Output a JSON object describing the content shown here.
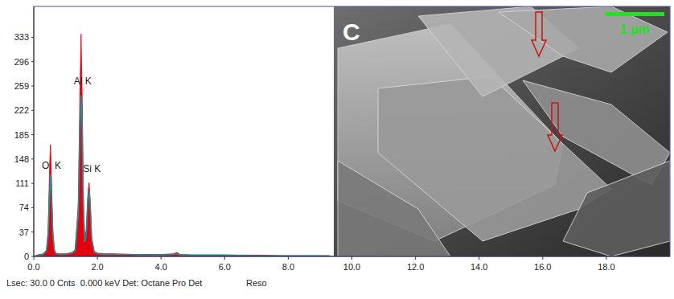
{
  "chart_data": {
    "type": "area",
    "xlim": [
      0,
      20
    ],
    "ylim": [
      0,
      380
    ],
    "xticks": [
      {
        "value": 0,
        "label": "0.0"
      },
      {
        "value": 2,
        "label": "2.0"
      },
      {
        "value": 4,
        "label": "4.0"
      },
      {
        "value": 6,
        "label": "6.0"
      },
      {
        "value": 8,
        "label": "8.0"
      },
      {
        "value": 10,
        "label": "10.0"
      },
      {
        "value": 12,
        "label": "12.0"
      },
      {
        "value": 14,
        "label": "14.0"
      },
      {
        "value": 16,
        "label": "16.0"
      },
      {
        "value": 18,
        "label": "18.0"
      }
    ],
    "yticks": [
      0,
      37,
      74,
      111,
      148,
      185,
      222,
      259,
      296,
      333
    ],
    "grid": false,
    "x": [
      0.0,
      0.1,
      0.2,
      0.3,
      0.4,
      0.45,
      0.5,
      0.525,
      0.55,
      0.6,
      0.65,
      0.7,
      0.8,
      0.9,
      1.0,
      1.1,
      1.2,
      1.3,
      1.4,
      1.45,
      1.487,
      1.52,
      1.56,
      1.6,
      1.65,
      1.7,
      1.74,
      1.78,
      1.82,
      1.9,
      2.0,
      2.2,
      2.5,
      3.0,
      3.5,
      4.0,
      4.4,
      4.5,
      4.6,
      5.0,
      6.0,
      7.0,
      8.0,
      9.3
    ],
    "series": [
      {
        "type": "area",
        "color": "#e3000f",
        "values": [
          0,
          2,
          3,
          4,
          10,
          40,
          140,
          170,
          130,
          40,
          10,
          5,
          4,
          4,
          4,
          5,
          6,
          10,
          80,
          250,
          338,
          250,
          90,
          30,
          40,
          95,
          112,
          80,
          30,
          8,
          5,
          4,
          4,
          3,
          3,
          3,
          4,
          6,
          3,
          2,
          2,
          2,
          1,
          1
        ]
      },
      {
        "type": "line",
        "color": "#1f8f95",
        "values": [
          0,
          1,
          2,
          3,
          8,
          30,
          100,
          125,
          95,
          30,
          8,
          4,
          3,
          3,
          3,
          4,
          5,
          8,
          65,
          195,
          245,
          195,
          70,
          22,
          32,
          85,
          100,
          70,
          25,
          6,
          4,
          3,
          3,
          3,
          2,
          2,
          3,
          4,
          2,
          2,
          2,
          1,
          1,
          1
        ]
      }
    ],
    "annotations": [
      {
        "text": "O  K",
        "x": 0.25,
        "y": 133
      },
      {
        "text": "Al K",
        "x": 1.26,
        "y": 261
      },
      {
        "text": "Si K",
        "x": 1.55,
        "y": 128
      }
    ],
    "image": {
      "panel_label": "C",
      "scale_bar": "1 µm"
    },
    "footer": [
      "Lsec: 30.0 0 Cnts  0.000 keV Det: Octane Pro Det",
      "Reso"
    ]
  }
}
